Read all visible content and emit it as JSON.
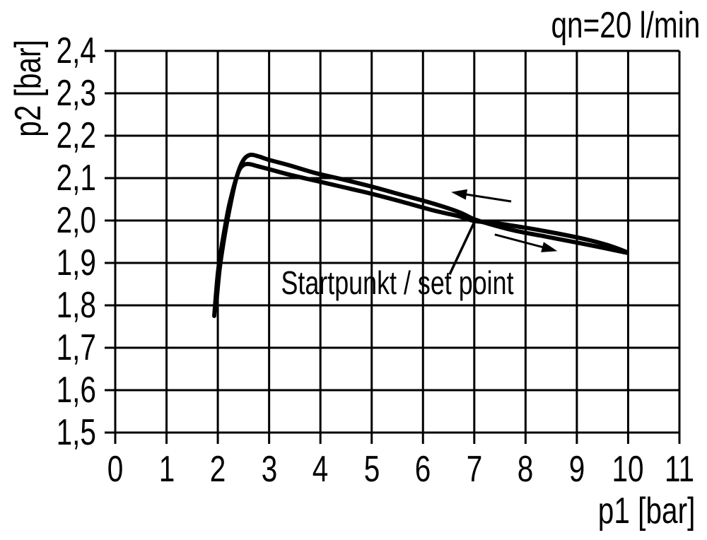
{
  "colors": {
    "foreground": "#000000",
    "background": "#ffffff"
  },
  "chart_data": {
    "type": "line",
    "title": "qn=20 l/min",
    "xlabel": "p1 [bar]",
    "ylabel": "p2 [bar]",
    "xlim": [
      0,
      11
    ],
    "ylim": [
      1.5,
      2.4
    ],
    "grid": true,
    "legend": "none",
    "x_ticks": [
      0,
      1,
      2,
      3,
      4,
      5,
      6,
      7,
      8,
      9,
      10,
      11
    ],
    "x_tick_labels": [
      "0",
      "1",
      "2",
      "3",
      "4",
      "5",
      "6",
      "7",
      "8",
      "9",
      "10",
      "11"
    ],
    "y_ticks": [
      2.4,
      2.3,
      2.2,
      2.1,
      2.0,
      1.9,
      1.8,
      1.7,
      1.6,
      1.5
    ],
    "y_tick_labels": [
      "2,4",
      "2,3",
      "2,2",
      "2,1",
      "2,0",
      "1,9",
      "1,8",
      "1,7",
      "1,6",
      "1,5"
    ],
    "series": [
      {
        "id": "pass-outer",
        "points": [
          [
            1.96,
            1.79
          ],
          [
            2.03,
            1.88
          ],
          [
            2.1,
            1.94
          ],
          [
            2.17,
            1.99
          ],
          [
            2.25,
            2.04
          ],
          [
            2.33,
            2.085
          ],
          [
            2.42,
            2.122
          ],
          [
            2.52,
            2.146
          ],
          [
            2.64,
            2.155
          ],
          [
            2.8,
            2.151
          ],
          [
            3.0,
            2.143
          ],
          [
            3.4,
            2.13
          ],
          [
            3.9,
            2.112
          ],
          [
            4.4,
            2.098
          ],
          [
            5.0,
            2.08
          ],
          [
            5.6,
            2.06
          ],
          [
            6.2,
            2.04
          ],
          [
            6.7,
            2.02
          ],
          [
            7.0,
            2.003
          ],
          [
            7.35,
            1.99
          ],
          [
            7.8,
            1.976
          ],
          [
            8.4,
            1.962
          ],
          [
            9.0,
            1.948
          ],
          [
            9.5,
            1.936
          ],
          [
            9.97,
            1.924
          ]
        ]
      },
      {
        "id": "pass-inner",
        "points": [
          [
            1.93,
            1.775
          ],
          [
            2.0,
            1.875
          ],
          [
            2.07,
            1.935
          ],
          [
            2.14,
            1.985
          ],
          [
            2.21,
            2.03
          ],
          [
            2.29,
            2.07
          ],
          [
            2.36,
            2.1
          ],
          [
            2.43,
            2.122
          ],
          [
            2.52,
            2.132
          ],
          [
            2.62,
            2.133
          ],
          [
            2.78,
            2.128
          ],
          [
            3.0,
            2.121
          ],
          [
            3.4,
            2.108
          ],
          [
            3.9,
            2.094
          ],
          [
            4.4,
            2.08
          ],
          [
            5.0,
            2.063
          ],
          [
            5.6,
            2.044
          ],
          [
            6.2,
            2.024
          ],
          [
            6.7,
            2.01
          ],
          [
            7.0,
            1.999
          ],
          [
            7.4,
            1.994
          ],
          [
            8.0,
            1.983
          ],
          [
            8.6,
            1.97
          ],
          [
            9.2,
            1.955
          ],
          [
            9.6,
            1.942
          ],
          [
            9.97,
            1.926
          ]
        ]
      }
    ],
    "annotation": {
      "text": "Startpunkt / set point",
      "point": [
        7.0,
        2.0
      ],
      "leader_from": [
        6.52,
        1.873
      ],
      "leader_to": [
        7.015,
        2.0
      ]
    },
    "arrows": [
      {
        "id": "arrow-decreasing-p1",
        "from": [
          7.72,
          2.045
        ],
        "to": [
          6.55,
          2.067
        ]
      },
      {
        "id": "arrow-increasing-p1",
        "from": [
          7.4,
          1.967
        ],
        "to": [
          8.62,
          1.928
        ]
      }
    ]
  }
}
